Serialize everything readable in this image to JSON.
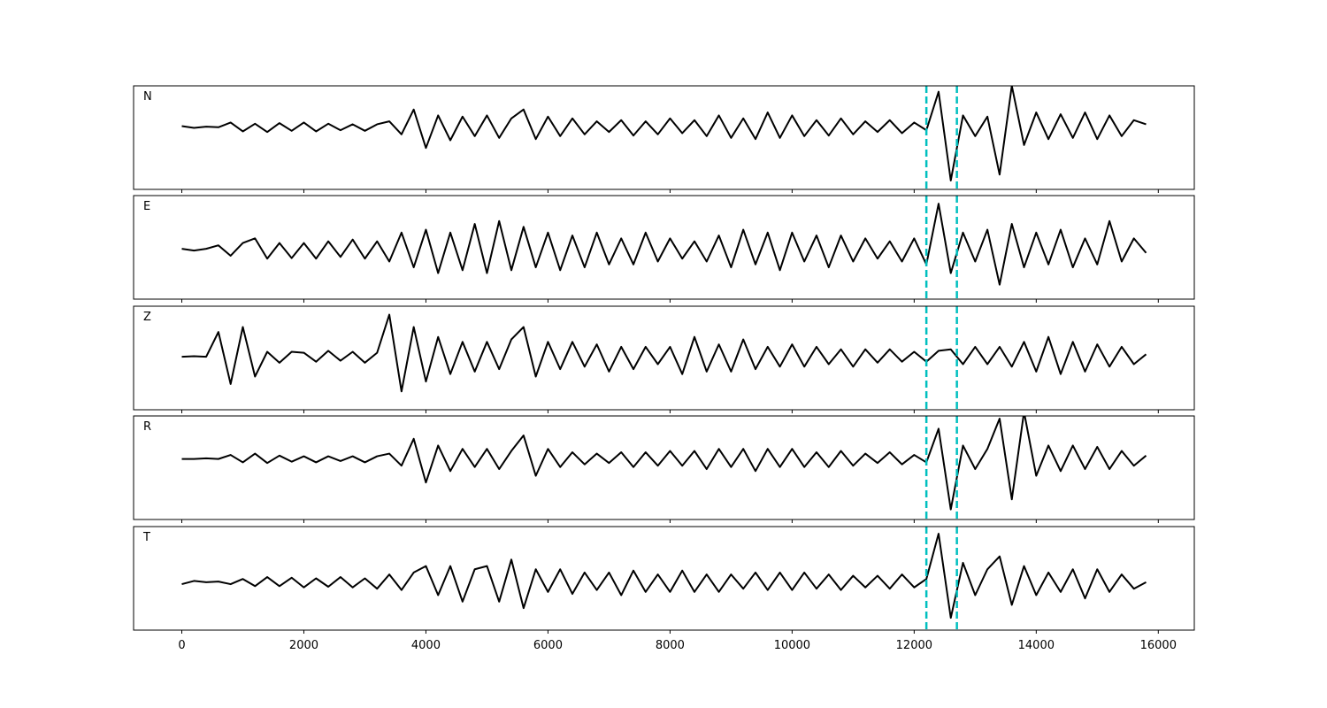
{
  "chart_data": [
    {
      "type": "line",
      "label": "N",
      "color": "#000000",
      "xlim": [
        -790,
        16590
      ],
      "ylim": [
        -1.05,
        0.7
      ],
      "xticks": [
        0,
        2000,
        4000,
        6000,
        8000,
        10000,
        12000,
        14000,
        16000
      ],
      "vlines": [
        12200,
        12700
      ],
      "vline_color": "#00bfbf",
      "vline_style": "dashed",
      "x": [
        0,
        200,
        400,
        600,
        800,
        1000,
        1200,
        1400,
        1600,
        1800,
        2000,
        2200,
        2400,
        2600,
        2800,
        3000,
        3200,
        3400,
        3600,
        3800,
        4000,
        4200,
        4400,
        4600,
        4800,
        5000,
        5200,
        5400,
        5600,
        5800,
        6000,
        6200,
        6400,
        6600,
        6800,
        7000,
        7200,
        7400,
        7600,
        7800,
        8000,
        8200,
        8400,
        8600,
        8800,
        9000,
        9200,
        9400,
        9600,
        9800,
        10000,
        10200,
        10400,
        10600,
        10800,
        11000,
        11200,
        11400,
        11600,
        11800,
        12000,
        12200,
        12400,
        12600,
        12800,
        13000,
        13200,
        13400,
        13600,
        13800,
        14000,
        14200,
        14400,
        14600,
        14800,
        15000,
        15200,
        15400,
        15600,
        15800
      ],
      "values": [
        0.02,
        -0.01,
        0.01,
        0.0,
        0.08,
        -0.07,
        0.06,
        -0.08,
        0.07,
        -0.06,
        0.08,
        -0.07,
        0.06,
        -0.05,
        0.05,
        -0.06,
        0.05,
        0.1,
        -0.12,
        0.3,
        -0.35,
        0.2,
        -0.22,
        0.18,
        -0.15,
        0.2,
        -0.18,
        0.15,
        0.3,
        -0.2,
        0.18,
        -0.15,
        0.15,
        -0.12,
        0.1,
        -0.08,
        0.12,
        -0.14,
        0.1,
        -0.12,
        0.15,
        -0.1,
        0.12,
        -0.15,
        0.2,
        -0.18,
        0.15,
        -0.2,
        0.25,
        -0.18,
        0.2,
        -0.15,
        0.12,
        -0.14,
        0.15,
        -0.12,
        0.1,
        -0.08,
        0.12,
        -0.1,
        0.08,
        -0.05,
        0.6,
        -0.9,
        0.2,
        -0.15,
        0.18,
        -0.8,
        0.7,
        -0.3,
        0.25,
        -0.2,
        0.22,
        -0.18,
        0.25,
        -0.2,
        0.2,
        -0.15,
        0.12,
        0.05
      ]
    },
    {
      "type": "line",
      "label": "E",
      "color": "#000000",
      "xlim": [
        -790,
        16590
      ],
      "ylim": [
        -0.85,
        0.94
      ],
      "xticks": [
        0,
        2000,
        4000,
        6000,
        8000,
        10000,
        12000,
        14000,
        16000
      ],
      "vlines": [
        12200,
        12700
      ],
      "vline_color": "#00bfbf",
      "vline_style": "dashed",
      "x": [
        0,
        200,
        400,
        600,
        800,
        1000,
        1200,
        1400,
        1600,
        1800,
        2000,
        2200,
        2400,
        2600,
        2800,
        3000,
        3200,
        3400,
        3600,
        3800,
        4000,
        4200,
        4400,
        4600,
        4800,
        5000,
        5200,
        5400,
        5600,
        5800,
        6000,
        6200,
        6400,
        6600,
        6800,
        7000,
        7200,
        7400,
        7600,
        7800,
        8000,
        8200,
        8400,
        8600,
        8800,
        9000,
        9200,
        9400,
        9600,
        9800,
        10000,
        10200,
        10400,
        10600,
        10800,
        11000,
        11200,
        11400,
        11600,
        11800,
        12000,
        12200,
        12400,
        12600,
        12800,
        13000,
        13200,
        13400,
        13600,
        13800,
        14000,
        14200,
        14400,
        14600,
        14800,
        15000,
        15200,
        15400,
        15600,
        15800
      ],
      "values": [
        0.02,
        -0.01,
        0.02,
        0.08,
        -0.1,
        0.12,
        0.2,
        -0.15,
        0.12,
        -0.14,
        0.12,
        -0.15,
        0.15,
        -0.12,
        0.18,
        -0.15,
        0.15,
        -0.2,
        0.3,
        -0.3,
        0.35,
        -0.4,
        0.3,
        -0.35,
        0.45,
        -0.4,
        0.5,
        -0.35,
        0.4,
        -0.3,
        0.3,
        -0.35,
        0.25,
        -0.3,
        0.3,
        -0.25,
        0.2,
        -0.25,
        0.3,
        -0.2,
        0.2,
        -0.15,
        0.15,
        -0.2,
        0.25,
        -0.3,
        0.35,
        -0.25,
        0.3,
        -0.35,
        0.3,
        -0.2,
        0.25,
        -0.3,
        0.25,
        -0.2,
        0.2,
        -0.15,
        0.15,
        -0.2,
        0.2,
        -0.25,
        0.8,
        -0.4,
        0.3,
        -0.2,
        0.35,
        -0.6,
        0.45,
        -0.3,
        0.3,
        -0.25,
        0.35,
        -0.3,
        0.2,
        -0.25,
        0.5,
        -0.2,
        0.2,
        -0.05
      ]
    },
    {
      "type": "line",
      "label": "Z",
      "color": "#000000",
      "xlim": [
        -790,
        16590
      ],
      "ylim": [
        -1.07,
        1.02
      ],
      "xticks": [
        0,
        2000,
        4000,
        6000,
        8000,
        10000,
        12000,
        14000,
        16000
      ],
      "vlines": [
        12200,
        12700
      ],
      "vline_color": "#00bfbf",
      "vline_style": "dashed",
      "x": [
        0,
        200,
        400,
        600,
        800,
        1000,
        1200,
        1400,
        1600,
        1800,
        2000,
        2200,
        2400,
        2600,
        2800,
        3000,
        3200,
        3400,
        3600,
        3800,
        4000,
        4200,
        4400,
        4600,
        4800,
        5000,
        5200,
        5400,
        5600,
        5800,
        6000,
        6200,
        6400,
        6600,
        6800,
        7000,
        7200,
        7400,
        7600,
        7800,
        8000,
        8200,
        8400,
        8600,
        8800,
        9000,
        9200,
        9400,
        9600,
        9800,
        10000,
        10200,
        10400,
        10600,
        10800,
        11000,
        11200,
        11400,
        11600,
        11800,
        12000,
        12200,
        12400,
        12600,
        12800,
        13000,
        13200,
        13400,
        13600,
        13800,
        14000,
        14200,
        14400,
        14600,
        14800,
        15000,
        15200,
        15400,
        15600,
        15800
      ],
      "values": [
        0.0,
        0.01,
        0.0,
        0.5,
        -0.55,
        0.6,
        -0.4,
        0.1,
        -0.12,
        0.1,
        0.08,
        -0.1,
        0.12,
        -0.08,
        0.1,
        -0.12,
        0.08,
        0.85,
        -0.7,
        0.6,
        -0.5,
        0.4,
        -0.35,
        0.3,
        -0.3,
        0.3,
        -0.25,
        0.35,
        0.6,
        -0.4,
        0.3,
        -0.25,
        0.3,
        -0.2,
        0.25,
        -0.3,
        0.2,
        -0.25,
        0.2,
        -0.15,
        0.2,
        -0.35,
        0.4,
        -0.3,
        0.25,
        -0.3,
        0.35,
        -0.25,
        0.2,
        -0.2,
        0.25,
        -0.2,
        0.2,
        -0.15,
        0.15,
        -0.2,
        0.15,
        -0.12,
        0.15,
        -0.1,
        0.1,
        -0.1,
        0.12,
        0.15,
        -0.15,
        0.2,
        -0.15,
        0.2,
        -0.2,
        0.3,
        -0.3,
        0.4,
        -0.35,
        0.3,
        -0.3,
        0.25,
        -0.2,
        0.2,
        -0.15,
        0.05
      ]
    },
    {
      "type": "line",
      "label": "R",
      "color": "#000000",
      "xlim": [
        -790,
        16590
      ],
      "ylim": [
        -0.9,
        0.64
      ],
      "xticks": [
        0,
        2000,
        4000,
        6000,
        8000,
        10000,
        12000,
        14000,
        16000
      ],
      "vlines": [
        12200,
        12700
      ],
      "vline_color": "#00bfbf",
      "vline_style": "dashed",
      "x": [
        0,
        200,
        400,
        600,
        800,
        1000,
        1200,
        1400,
        1600,
        1800,
        2000,
        2200,
        2400,
        2600,
        2800,
        3000,
        3200,
        3400,
        3600,
        3800,
        4000,
        4200,
        4400,
        4600,
        4800,
        5000,
        5200,
        5400,
        5600,
        5800,
        6000,
        6200,
        6400,
        6600,
        6800,
        7000,
        7200,
        7400,
        7600,
        7800,
        8000,
        8200,
        8400,
        8600,
        8800,
        9000,
        9200,
        9400,
        9600,
        9800,
        10000,
        10200,
        10400,
        10600,
        10800,
        11000,
        11200,
        11400,
        11600,
        11800,
        12000,
        12200,
        12400,
        12600,
        12800,
        13000,
        13200,
        13400,
        13600,
        13800,
        14000,
        14200,
        14400,
        14600,
        14800,
        15000,
        15200,
        15400,
        15600,
        15800
      ],
      "values": [
        0.0,
        0.0,
        0.01,
        0.0,
        0.06,
        -0.05,
        0.08,
        -0.06,
        0.05,
        -0.04,
        0.04,
        -0.05,
        0.04,
        -0.03,
        0.04,
        -0.05,
        0.04,
        0.08,
        -0.1,
        0.3,
        -0.35,
        0.2,
        -0.18,
        0.15,
        -0.12,
        0.15,
        -0.15,
        0.12,
        0.35,
        -0.25,
        0.15,
        -0.12,
        0.1,
        -0.08,
        0.08,
        -0.06,
        0.1,
        -0.12,
        0.1,
        -0.1,
        0.12,
        -0.1,
        0.12,
        -0.15,
        0.15,
        -0.12,
        0.15,
        -0.18,
        0.15,
        -0.12,
        0.15,
        -0.12,
        0.1,
        -0.12,
        0.12,
        -0.1,
        0.08,
        -0.06,
        0.1,
        -0.08,
        0.06,
        -0.05,
        0.45,
        -0.75,
        0.2,
        -0.15,
        0.15,
        0.6,
        -0.6,
        0.7,
        -0.25,
        0.2,
        -0.18,
        0.2,
        -0.15,
        0.18,
        -0.15,
        0.12,
        -0.1,
        0.05
      ]
    },
    {
      "type": "line",
      "label": "T",
      "color": "#000000",
      "xlim": [
        -790,
        16590
      ],
      "ylim": [
        -0.74,
        0.86
      ],
      "xticks": [
        0,
        2000,
        4000,
        6000,
        8000,
        10000,
        12000,
        14000,
        16000
      ],
      "vlines": [
        12200,
        12700
      ],
      "vline_color": "#00bfbf",
      "vline_style": "dashed",
      "x": [
        0,
        200,
        400,
        600,
        800,
        1000,
        1200,
        1400,
        1600,
        1800,
        2000,
        2200,
        2400,
        2600,
        2800,
        3000,
        3200,
        3400,
        3600,
        3800,
        4000,
        4200,
        4400,
        4600,
        4800,
        5000,
        5200,
        5400,
        5600,
        5800,
        6000,
        6200,
        6400,
        6600,
        6800,
        7000,
        7200,
        7400,
        7600,
        7800,
        8000,
        8200,
        8400,
        8600,
        8800,
        9000,
        9200,
        9400,
        9600,
        9800,
        10000,
        10200,
        10400,
        10600,
        10800,
        11000,
        11200,
        11400,
        11600,
        11800,
        12000,
        12200,
        12400,
        12600,
        12800,
        13000,
        13200,
        13400,
        13600,
        13800,
        14000,
        14200,
        14400,
        14600,
        14800,
        15000,
        15200,
        15400,
        15600,
        15800
      ],
      "values": [
        -0.03,
        0.02,
        0.0,
        0.01,
        -0.03,
        0.05,
        -0.06,
        0.08,
        -0.06,
        0.07,
        -0.08,
        0.06,
        -0.07,
        0.08,
        -0.08,
        0.06,
        -0.1,
        0.12,
        -0.12,
        0.15,
        0.25,
        -0.2,
        0.25,
        -0.3,
        0.2,
        0.25,
        -0.3,
        0.35,
        -0.4,
        0.2,
        -0.15,
        0.2,
        -0.18,
        0.15,
        -0.12,
        0.15,
        -0.2,
        0.18,
        -0.15,
        0.12,
        -0.15,
        0.18,
        -0.15,
        0.12,
        -0.15,
        0.12,
        -0.1,
        0.15,
        -0.12,
        0.15,
        -0.12,
        0.15,
        -0.1,
        0.12,
        -0.12,
        0.1,
        -0.08,
        0.1,
        -0.1,
        0.12,
        -0.08,
        0.05,
        0.75,
        -0.55,
        0.3,
        -0.2,
        0.2,
        0.4,
        -0.35,
        0.25,
        -0.2,
        0.15,
        -0.15,
        0.2,
        -0.25,
        0.2,
        -0.15,
        0.12,
        -0.1,
        0.0
      ]
    }
  ]
}
